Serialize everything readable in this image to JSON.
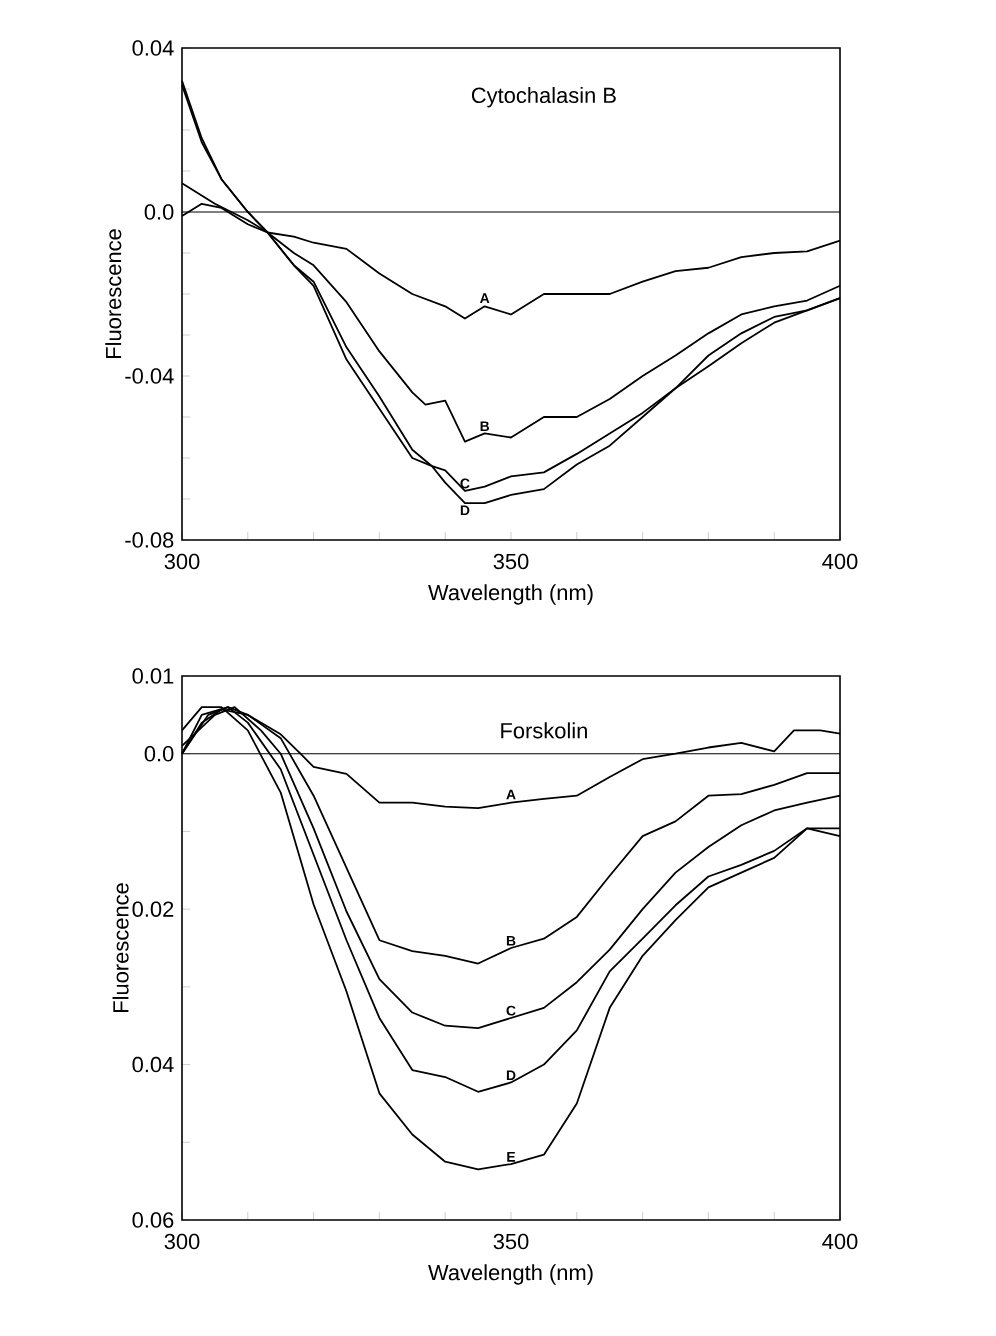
{
  "chart_data": [
    {
      "type": "line",
      "title": "Cytochalasin B",
      "xlabel": "Wavelength (nm)",
      "ylabel": "Fluorescence",
      "xlim": [
        300,
        400
      ],
      "ylim": [
        -0.08,
        0.04
      ],
      "xticks": [
        300,
        {
          "value": 310,
          "label": null
        },
        {
          "value": 320,
          "label": null
        },
        {
          "value": 330,
          "label": null
        },
        {
          "value": 340,
          "label": null
        },
        350,
        {
          "value": 360,
          "label": null
        },
        {
          "value": 370,
          "label": null
        },
        {
          "value": 380,
          "label": null
        },
        {
          "value": 390,
          "label": null
        },
        400
      ],
      "yticks": [
        -0.08,
        {
          "value": -0.07,
          "label": null
        },
        {
          "value": -0.06,
          "label": null
        },
        {
          "value": -0.05,
          "label": null
        },
        -0.04,
        {
          "value": -0.03,
          "label": null
        },
        {
          "value": -0.02,
          "label": null
        },
        {
          "value": -0.01,
          "label": null
        },
        {
          "value": 0,
          "label": "0.0"
        },
        {
          "value": 0.01,
          "label": null
        },
        {
          "value": 0.02,
          "label": null
        },
        {
          "value": 0.03,
          "label": null
        },
        0.04
      ],
      "ref_lines": [
        {
          "axis": "y",
          "value": 0
        }
      ],
      "series": [
        {
          "name": "A",
          "color": "#000000",
          "x": [
            300,
            303,
            306,
            310,
            313,
            317,
            320,
            325,
            330,
            335,
            340,
            343,
            346,
            350,
            355,
            360,
            365,
            370,
            375,
            380,
            385,
            390,
            395,
            400
          ],
          "values": [
            -0.001,
            0.002,
            0.001,
            -0.003,
            -0.005,
            -0.006,
            -0.0075,
            -0.009,
            -0.015,
            -0.02,
            -0.023,
            -0.026,
            -0.023,
            -0.025,
            -0.02,
            -0.02,
            -0.02,
            -0.017,
            -0.0144,
            -0.0136,
            -0.011,
            -0.01,
            -0.0096,
            -0.007
          ]
        },
        {
          "name": "B",
          "color": "#000000",
          "x": [
            300,
            305,
            310,
            313,
            317,
            320,
            325,
            330,
            335,
            337,
            340,
            343,
            346,
            350,
            355,
            360,
            365,
            370,
            375,
            380,
            385,
            390,
            395,
            400
          ],
          "values": [
            0.007,
            0.002,
            -0.002,
            -0.005,
            -0.01,
            -0.013,
            -0.022,
            -0.034,
            -0.044,
            -0.047,
            -0.046,
            -0.056,
            -0.054,
            -0.055,
            -0.05,
            -0.05,
            -0.0456,
            -0.04,
            -0.035,
            -0.0296,
            -0.025,
            -0.023,
            -0.0216,
            -0.018
          ]
        },
        {
          "name": "C",
          "color": "#000000",
          "x": [
            300,
            303,
            306,
            310,
            313,
            317,
            320,
            325,
            330,
            335,
            338,
            340,
            343,
            346,
            350,
            355,
            360,
            365,
            370,
            375,
            380,
            385,
            390,
            395,
            400
          ],
          "values": [
            0.032,
            0.018,
            0.008,
            0.0,
            -0.005,
            -0.013,
            -0.017,
            -0.033,
            -0.045,
            -0.058,
            -0.062,
            -0.063,
            -0.068,
            -0.067,
            -0.0645,
            -0.0635,
            -0.059,
            -0.054,
            -0.049,
            -0.043,
            -0.035,
            -0.0296,
            -0.0256,
            -0.024,
            -0.021
          ]
        },
        {
          "name": "D",
          "color": "#000000",
          "x": [
            300,
            303,
            306,
            310,
            313,
            317,
            320,
            325,
            330,
            335,
            338,
            340,
            343,
            346,
            350,
            355,
            360,
            365,
            370,
            375,
            380,
            385,
            390,
            395,
            400
          ],
          "values": [
            0.031,
            0.017,
            0.008,
            0.0,
            -0.005,
            -0.013,
            -0.018,
            -0.036,
            -0.048,
            -0.06,
            -0.062,
            -0.066,
            -0.071,
            -0.071,
            -0.069,
            -0.0676,
            -0.0616,
            -0.057,
            -0.05,
            -0.043,
            -0.0376,
            -0.032,
            -0.027,
            -0.024,
            -0.021
          ]
        }
      ]
    },
    {
      "type": "line",
      "title": "Forskolin",
      "xlabel": "Wavelength (nm)",
      "ylabel": "Fluorescence",
      "xlim": [
        300,
        400
      ],
      "ylim": [
        -0.06,
        0.01
      ],
      "xticks": [
        300,
        {
          "value": 310,
          "label": null
        },
        {
          "value": 320,
          "label": null
        },
        {
          "value": 330,
          "label": null
        },
        {
          "value": 340,
          "label": null
        },
        350,
        {
          "value": 360,
          "label": null
        },
        {
          "value": 370,
          "label": null
        },
        {
          "value": 380,
          "label": null
        },
        {
          "value": 390,
          "label": null
        },
        400
      ],
      "yticks": [
        {
          "value": -0.06,
          "label": "0.06"
        },
        {
          "value": -0.05,
          "label": null
        },
        {
          "value": -0.04,
          "label": "0.04"
        },
        {
          "value": -0.03,
          "label": null
        },
        {
          "value": -0.02,
          "label": "0.02"
        },
        {
          "value": -0.01,
          "label": null
        },
        {
          "value": 0,
          "label": "0.0"
        },
        0.01
      ],
      "ref_lines": [
        {
          "axis": "y",
          "value": 0
        }
      ],
      "series": [
        {
          "name": "A",
          "color": "#000000",
          "x": [
            300,
            303,
            306,
            310,
            315,
            318,
            320,
            325,
            330,
            335,
            340,
            345,
            350,
            355,
            360,
            365,
            370,
            375,
            380,
            385,
            390,
            393,
            397,
            400
          ],
          "values": [
            0.0,
            0.004,
            0.0057,
            0.005,
            0.0025,
            0.0,
            -0.0017,
            -0.0026,
            -0.0063,
            -0.0063,
            -0.0068,
            -0.007,
            -0.0063,
            -0.0058,
            -0.0054,
            -0.003,
            -0.0007,
            0.0,
            0.0008,
            0.0014,
            0.0003,
            0.003,
            0.003,
            0.0026
          ]
        },
        {
          "name": "B",
          "color": "#000000",
          "x": [
            300,
            303,
            307,
            310,
            315,
            320,
            325,
            330,
            335,
            340,
            345,
            350,
            355,
            360,
            365,
            370,
            375,
            380,
            385,
            390,
            395,
            400
          ],
          "values": [
            0.0,
            0.005,
            0.006,
            0.005,
            0.002,
            -0.0054,
            -0.0147,
            -0.024,
            -0.0254,
            -0.026,
            -0.027,
            -0.025,
            -0.0238,
            -0.021,
            -0.0157,
            -0.0106,
            -0.0087,
            -0.0054,
            -0.0052,
            -0.004,
            -0.0025,
            -0.0025
          ]
        },
        {
          "name": "C",
          "color": "#000000",
          "x": [
            300,
            305,
            308,
            312,
            315,
            320,
            325,
            330,
            335,
            340,
            345,
            350,
            355,
            360,
            365,
            370,
            375,
            380,
            385,
            390,
            395,
            400
          ],
          "values": [
            0.001,
            0.005,
            0.006,
            0.003,
            0.0,
            -0.0096,
            -0.0203,
            -0.029,
            -0.0333,
            -0.035,
            -0.0353,
            -0.034,
            -0.0327,
            -0.0294,
            -0.0252,
            -0.02,
            -0.0153,
            -0.012,
            -0.0092,
            -0.0073,
            -0.0063,
            -0.0054
          ]
        },
        {
          "name": "D",
          "color": "#000000",
          "x": [
            300,
            304,
            307,
            310,
            315,
            320,
            325,
            330,
            335,
            340,
            345,
            350,
            355,
            360,
            365,
            370,
            375,
            380,
            385,
            390,
            395,
            400
          ],
          "values": [
            0.0,
            0.005,
            0.006,
            0.004,
            -0.002,
            -0.013,
            -0.024,
            -0.034,
            -0.0407,
            -0.0416,
            -0.0435,
            -0.0423,
            -0.04,
            -0.0356,
            -0.028,
            -0.0238,
            -0.0195,
            -0.0158,
            -0.0143,
            -0.0125,
            -0.0096,
            -0.0096
          ]
        },
        {
          "name": "E",
          "color": "#000000",
          "x": [
            300,
            303,
            306,
            310,
            315,
            320,
            325,
            330,
            335,
            340,
            345,
            350,
            355,
            360,
            365,
            370,
            375,
            380,
            385,
            390,
            395,
            400
          ],
          "values": [
            0.003,
            0.006,
            0.006,
            0.003,
            -0.005,
            -0.0194,
            -0.0306,
            -0.0437,
            -0.049,
            -0.0525,
            -0.0535,
            -0.0528,
            -0.0516,
            -0.045,
            -0.0327,
            -0.026,
            -0.0214,
            -0.0172,
            -0.0153,
            -0.0134,
            -0.0096,
            -0.0106
          ]
        }
      ]
    }
  ]
}
